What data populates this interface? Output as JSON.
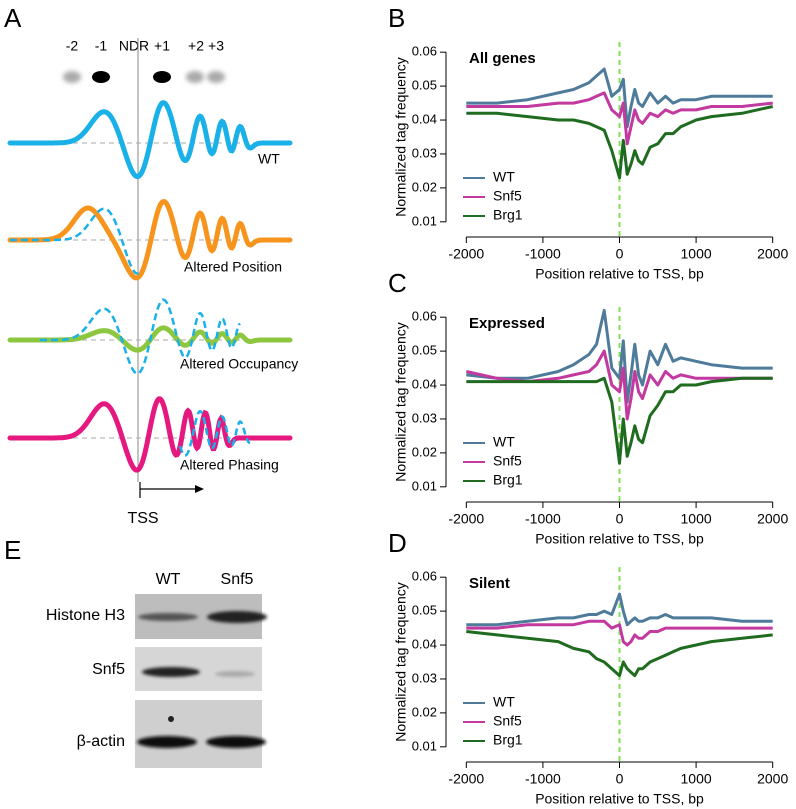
{
  "schematic": {
    "label": "A",
    "nucleosomes": [
      "-2",
      "-1",
      "NDR",
      "+1",
      "+2",
      "+3"
    ],
    "traces": [
      "WT",
      "Altered Position",
      "Altered Occupancy",
      "Altered Phasing"
    ],
    "axis_label": "TSS"
  },
  "chart_data": [
    {
      "type": "line",
      "panel_label": "B",
      "title": "All genes",
      "xlabel": "Position relative to TSS, bp",
      "ylabel": "Normalized tag frequency",
      "x": [
        -2000,
        -1600,
        -1200,
        -800,
        -600,
        -400,
        -300,
        -200,
        -100,
        0,
        50,
        100,
        150,
        200,
        250,
        300,
        400,
        500,
        600,
        700,
        800,
        1000,
        1200,
        1600,
        2000
      ],
      "series": [
        {
          "name": "WT",
          "color": "#4f7b9a",
          "values": [
            0.045,
            0.045,
            0.046,
            0.048,
            0.049,
            0.051,
            0.053,
            0.055,
            0.047,
            0.049,
            0.052,
            0.038,
            0.044,
            0.049,
            0.045,
            0.044,
            0.048,
            0.045,
            0.047,
            0.045,
            0.046,
            0.046,
            0.047,
            0.047,
            0.047
          ]
        },
        {
          "name": "Snf5",
          "color": "#c2399f",
          "values": [
            0.044,
            0.044,
            0.044,
            0.045,
            0.045,
            0.046,
            0.047,
            0.048,
            0.043,
            0.041,
            0.045,
            0.033,
            0.038,
            0.043,
            0.04,
            0.039,
            0.042,
            0.041,
            0.043,
            0.042,
            0.043,
            0.043,
            0.044,
            0.044,
            0.045
          ]
        },
        {
          "name": "Brg1",
          "color": "#1f6b1f",
          "values": [
            0.042,
            0.042,
            0.041,
            0.04,
            0.04,
            0.039,
            0.038,
            0.037,
            0.031,
            0.023,
            0.034,
            0.024,
            0.027,
            0.031,
            0.028,
            0.027,
            0.032,
            0.033,
            0.036,
            0.036,
            0.038,
            0.04,
            0.041,
            0.042,
            0.044
          ]
        }
      ],
      "xlim": [
        -2200,
        2200
      ],
      "xticks": [
        -2000,
        -1000,
        0,
        1000,
        2000
      ],
      "ylim": [
        0.007,
        0.063
      ],
      "yticks": [
        0.01,
        0.02,
        0.03,
        0.04,
        0.05,
        0.06
      ],
      "vline": 0,
      "vline_color": "#7fe05a",
      "legend": "bottom left"
    },
    {
      "type": "line",
      "panel_label": "C",
      "title": "Expressed",
      "xlabel": "Position relative to TSS, bp",
      "ylabel": "Normalized tag frequency",
      "x": [
        -2000,
        -1600,
        -1200,
        -800,
        -600,
        -400,
        -300,
        -200,
        -100,
        0,
        50,
        100,
        150,
        200,
        250,
        300,
        400,
        500,
        600,
        700,
        800,
        1000,
        1200,
        1600,
        2000
      ],
      "series": [
        {
          "name": "WT",
          "color": "#4f7b9a",
          "values": [
            0.043,
            0.042,
            0.042,
            0.044,
            0.046,
            0.049,
            0.052,
            0.062,
            0.045,
            0.042,
            0.053,
            0.035,
            0.043,
            0.052,
            0.043,
            0.04,
            0.05,
            0.046,
            0.052,
            0.047,
            0.048,
            0.047,
            0.046,
            0.045,
            0.045
          ]
        },
        {
          "name": "Snf5",
          "color": "#c2399f",
          "values": [
            0.044,
            0.042,
            0.041,
            0.042,
            0.043,
            0.044,
            0.046,
            0.05,
            0.04,
            0.038,
            0.045,
            0.03,
            0.036,
            0.044,
            0.038,
            0.036,
            0.043,
            0.04,
            0.044,
            0.042,
            0.043,
            0.042,
            0.042,
            0.042,
            0.042
          ]
        },
        {
          "name": "Brg1",
          "color": "#1f6b1f",
          "values": [
            0.041,
            0.041,
            0.041,
            0.041,
            0.041,
            0.041,
            0.041,
            0.042,
            0.035,
            0.017,
            0.03,
            0.019,
            0.023,
            0.028,
            0.024,
            0.023,
            0.031,
            0.034,
            0.038,
            0.038,
            0.04,
            0.04,
            0.041,
            0.042,
            0.042
          ]
        }
      ],
      "xlim": [
        -2200,
        2200
      ],
      "xticks": [
        -2000,
        -1000,
        0,
        1000,
        2000
      ],
      "ylim": [
        0.007,
        0.063
      ],
      "yticks": [
        0.01,
        0.02,
        0.03,
        0.04,
        0.05,
        0.06
      ],
      "vline": 0,
      "vline_color": "#7fe05a",
      "legend": "bottom left"
    },
    {
      "type": "line",
      "panel_label": "D",
      "title": "Silent",
      "xlabel": "Position relative to TSS, bp",
      "ylabel": "Normalized tag frequency",
      "x": [
        -2000,
        -1600,
        -1200,
        -800,
        -600,
        -400,
        -300,
        -200,
        -100,
        0,
        50,
        100,
        150,
        200,
        250,
        300,
        400,
        500,
        600,
        700,
        800,
        1000,
        1200,
        1600,
        2000
      ],
      "series": [
        {
          "name": "WT",
          "color": "#4f7b9a",
          "values": [
            0.046,
            0.046,
            0.047,
            0.048,
            0.048,
            0.049,
            0.049,
            0.05,
            0.049,
            0.055,
            0.05,
            0.046,
            0.047,
            0.048,
            0.047,
            0.047,
            0.048,
            0.048,
            0.049,
            0.048,
            0.048,
            0.048,
            0.048,
            0.047,
            0.047
          ]
        },
        {
          "name": "Snf5",
          "color": "#c2399f",
          "values": [
            0.045,
            0.045,
            0.046,
            0.046,
            0.046,
            0.047,
            0.047,
            0.047,
            0.045,
            0.046,
            0.041,
            0.04,
            0.041,
            0.043,
            0.042,
            0.042,
            0.044,
            0.044,
            0.045,
            0.045,
            0.045,
            0.045,
            0.045,
            0.045,
            0.045
          ]
        },
        {
          "name": "Brg1",
          "color": "#1f6b1f",
          "values": [
            0.044,
            0.043,
            0.042,
            0.041,
            0.039,
            0.038,
            0.036,
            0.035,
            0.033,
            0.031,
            0.035,
            0.033,
            0.032,
            0.031,
            0.033,
            0.033,
            0.035,
            0.036,
            0.037,
            0.038,
            0.039,
            0.04,
            0.041,
            0.042,
            0.043
          ]
        }
      ],
      "xlim": [
        -2200,
        2200
      ],
      "xticks": [
        -2000,
        -1000,
        0,
        1000,
        2000
      ],
      "ylim": [
        0.007,
        0.063
      ],
      "yticks": [
        0.01,
        0.02,
        0.03,
        0.04,
        0.05,
        0.06
      ],
      "vline": 0,
      "vline_color": "#7fe05a",
      "legend": "bottom left"
    }
  ],
  "blot": {
    "label": "E",
    "columns": [
      "WT",
      "Snf5"
    ],
    "rows": [
      "Histone H3",
      "Snf5",
      "β-actin"
    ]
  }
}
